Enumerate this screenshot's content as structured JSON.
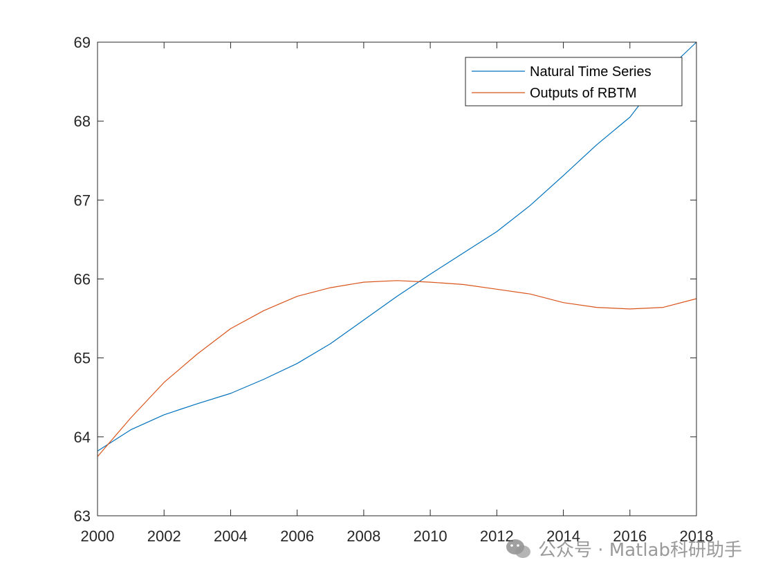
{
  "chart_data": {
    "type": "line",
    "title": "",
    "xlabel": "",
    "ylabel": "",
    "xlim": [
      2000,
      2018
    ],
    "ylim": [
      63,
      69
    ],
    "xticks": [
      2000,
      2002,
      2004,
      2006,
      2008,
      2010,
      2012,
      2014,
      2016,
      2018
    ],
    "yticks": [
      63,
      64,
      65,
      66,
      67,
      68,
      69
    ],
    "x": [
      2000,
      2001,
      2002,
      2003,
      2004,
      2005,
      2006,
      2007,
      2008,
      2009,
      2010,
      2011,
      2012,
      2013,
      2014,
      2015,
      2016,
      2017,
      2018
    ],
    "series": [
      {
        "name": "Natural Time Series",
        "color": "#0072BD",
        "values": [
          63.82,
          64.09,
          64.28,
          64.42,
          64.55,
          64.73,
          64.93,
          65.18,
          65.48,
          65.78,
          66.06,
          66.33,
          66.6,
          66.93,
          67.31,
          67.7,
          68.05,
          68.6,
          69.0
        ]
      },
      {
        "name": "Outputs of RBTM",
        "color": "#D95319",
        "values": [
          63.75,
          64.24,
          64.69,
          65.05,
          65.37,
          65.6,
          65.78,
          65.89,
          65.96,
          65.98,
          65.96,
          65.93,
          65.87,
          65.81,
          65.7,
          65.64,
          65.62,
          65.64,
          65.75
        ]
      }
    ],
    "grid": false,
    "legend_position": "top-right",
    "box": true
  },
  "watermark": {
    "text": "公众号 · Matlab科研助手",
    "icon": "wechat-icon"
  }
}
